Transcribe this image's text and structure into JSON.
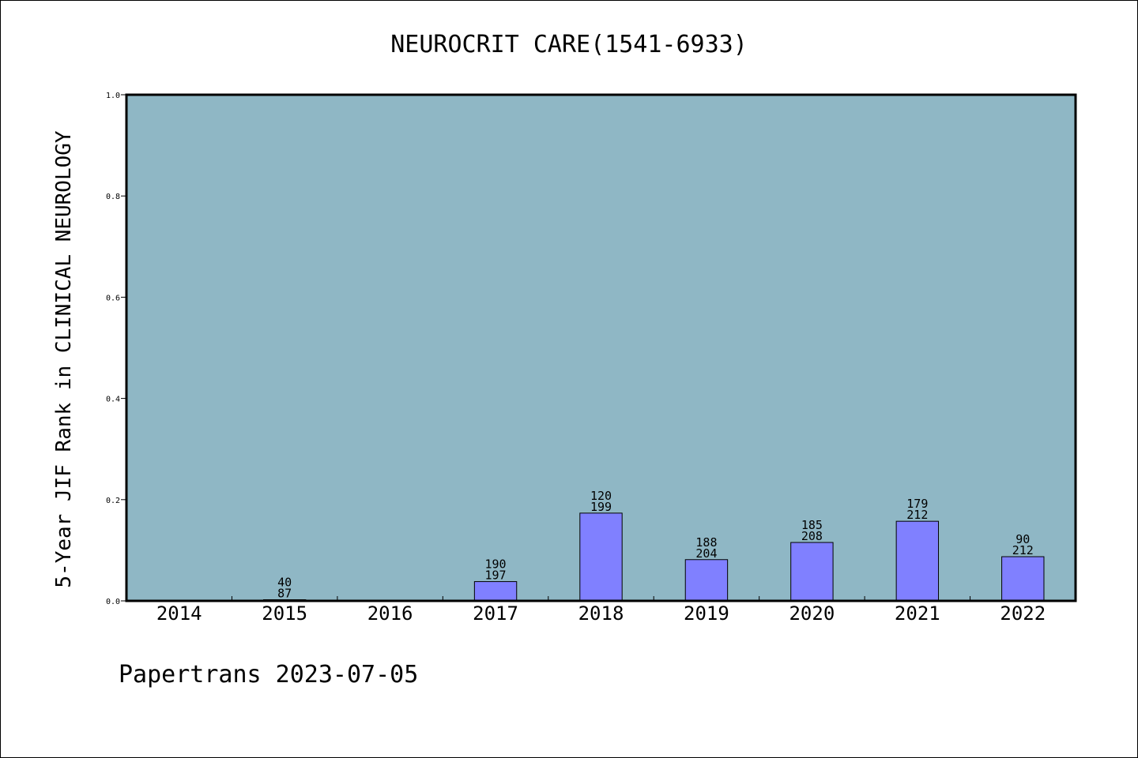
{
  "chart_data": {
    "type": "bar",
    "title": "NEUROCRIT CARE(1541-6933)",
    "xlabel": "",
    "ylabel": "5-Year JIF Rank in CLINICAL NEUROLOGY",
    "ylim": [
      0.0,
      1.0
    ],
    "yticks": [
      "0.0",
      "0.2",
      "0.4",
      "0.6",
      "0.8",
      "1.0"
    ],
    "grid": false,
    "legend": "none",
    "categories": [
      "2014",
      "2015",
      "2016",
      "2017",
      "2018",
      "2019",
      "2020",
      "2021",
      "2022"
    ],
    "values": [
      null,
      0.0023,
      null,
      0.0381,
      0.1734,
      0.0815,
      0.1154,
      0.1573,
      0.0873
    ],
    "labels": [
      null,
      {
        "rank": "40",
        "total": "87"
      },
      null,
      {
        "rank": "190",
        "total": "197"
      },
      {
        "rank": "120",
        "total": "199"
      },
      {
        "rank": "188",
        "total": "204"
      },
      {
        "rank": "185",
        "total": "208"
      },
      {
        "rank": "179",
        "total": "212"
      },
      {
        "rank": "90",
        "total": "212"
      }
    ]
  },
  "colors": {
    "plot_background": "#8fb7c5",
    "bar_fill": "#8080ff",
    "bar_stroke": "#000000"
  },
  "footer": {
    "text": "Papertrans 2023-07-05"
  }
}
